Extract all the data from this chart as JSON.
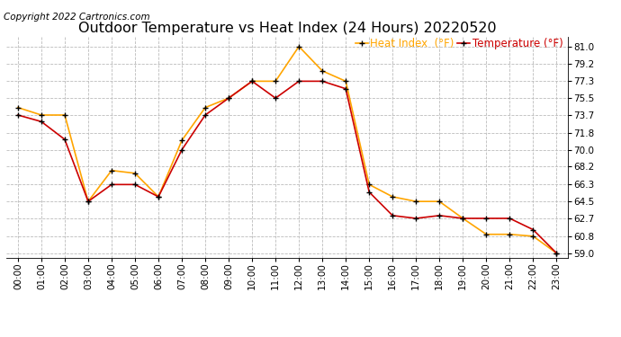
{
  "title": "Outdoor Temperature vs Heat Index (24 Hours) 20220520",
  "copyright": "Copyright 2022 Cartronics.com",
  "legend_heat": "Heat Index  (°F)",
  "legend_temp": "Temperature (°F)",
  "x_labels": [
    "00:00",
    "01:00",
    "02:00",
    "03:00",
    "04:00",
    "05:00",
    "06:00",
    "07:00",
    "08:00",
    "09:00",
    "10:00",
    "11:00",
    "12:00",
    "13:00",
    "14:00",
    "15:00",
    "16:00",
    "17:00",
    "18:00",
    "19:00",
    "20:00",
    "21:00",
    "22:00",
    "23:00"
  ],
  "heat_index": [
    74.5,
    73.7,
    73.7,
    64.5,
    67.8,
    67.5,
    65.0,
    71.0,
    74.5,
    75.5,
    77.3,
    77.3,
    81.0,
    78.4,
    77.3,
    66.3,
    65.0,
    64.5,
    64.5,
    62.7,
    61.0,
    61.0,
    60.8,
    59.0
  ],
  "temperature": [
    73.7,
    73.0,
    71.1,
    64.5,
    66.3,
    66.3,
    65.0,
    70.0,
    73.7,
    75.5,
    77.3,
    75.5,
    77.3,
    77.3,
    76.5,
    65.5,
    63.0,
    62.7,
    63.0,
    62.7,
    62.7,
    62.7,
    61.5,
    59.0
  ],
  "ylim": [
    58.5,
    82.0
  ],
  "yticks": [
    59.0,
    60.8,
    62.7,
    64.5,
    66.3,
    68.2,
    70.0,
    71.8,
    73.7,
    75.5,
    77.3,
    79.2,
    81.0
  ],
  "heat_color": "#FFA500",
  "temp_color": "#CC0000",
  "marker_color": "#000000",
  "grid_color": "#BBBBBB",
  "bg_color": "#FFFFFF",
  "title_fontsize": 11.5,
  "copyright_fontsize": 7.5,
  "legend_fontsize": 8.5,
  "tick_fontsize": 7.5,
  "marker_size": 3.0,
  "linewidth": 1.2
}
